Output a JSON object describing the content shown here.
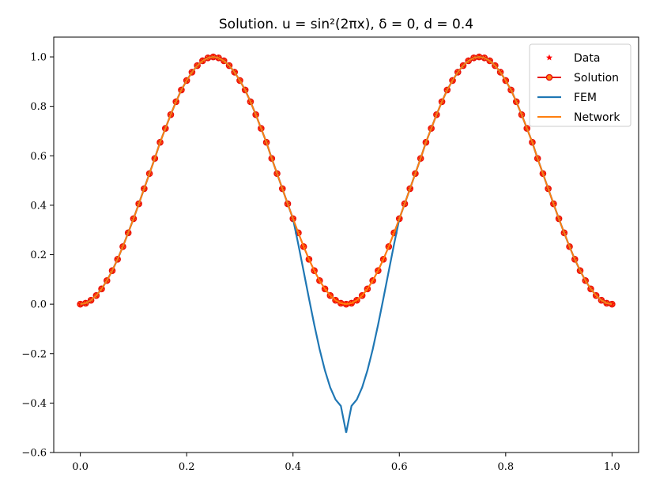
{
  "chart_data": {
    "type": "line",
    "title": "Solution. u = sin²(2πx), δ = 0, d = 0.4",
    "xlabel": "",
    "ylabel": "",
    "xlim": [
      -0.05,
      1.05
    ],
    "ylim": [
      -0.6,
      1.08
    ],
    "x_ticks": [
      0.0,
      0.2,
      0.4,
      0.6,
      0.8,
      1.0
    ],
    "x_tick_labels": [
      "0.0",
      "0.2",
      "0.4",
      "0.6",
      "0.8",
      "1.0"
    ],
    "y_ticks": [
      -0.6,
      -0.4,
      -0.2,
      0.0,
      0.2,
      0.4,
      0.6,
      0.8,
      1.0
    ],
    "y_tick_labels": [
      "−0.6",
      "−0.4",
      "−0.2",
      "0.0",
      "0.2",
      "0.4",
      "0.6",
      "0.8",
      "1.0"
    ],
    "grid": false,
    "legend_position": "top-right",
    "colors": {
      "data": "#ff0000",
      "solution": "#e8110a",
      "fem": "#1f77b4",
      "network": "#ff7f0e"
    },
    "series": [
      {
        "name": "Data",
        "style": "star-markers",
        "x": [
          0.0,
          0.01,
          0.02,
          0.03,
          0.04,
          0.05,
          0.06,
          0.07,
          0.08,
          0.09,
          0.1,
          0.11,
          0.12,
          0.13,
          0.14,
          0.15,
          0.16,
          0.17,
          0.18,
          0.19,
          0.2,
          0.21,
          0.22,
          0.23,
          0.24,
          0.25,
          0.26,
          0.27,
          0.28,
          0.29,
          0.3,
          0.31,
          0.32,
          0.33,
          0.34,
          0.35,
          0.36,
          0.37,
          0.38,
          0.39,
          0.4,
          0.41,
          0.42,
          0.43,
          0.44,
          0.45,
          0.46,
          0.47,
          0.48,
          0.49,
          0.5,
          0.51,
          0.52,
          0.53,
          0.54,
          0.55,
          0.56,
          0.57,
          0.58,
          0.59,
          0.6,
          0.61,
          0.62,
          0.63,
          0.64,
          0.65,
          0.66,
          0.67,
          0.68,
          0.69,
          0.7,
          0.71,
          0.72,
          0.73,
          0.74,
          0.75,
          0.76,
          0.77,
          0.78,
          0.79,
          0.8,
          0.81,
          0.82,
          0.83,
          0.84,
          0.85,
          0.86,
          0.87,
          0.88,
          0.89,
          0.9,
          0.91,
          0.92,
          0.93,
          0.94,
          0.95,
          0.96,
          0.97,
          0.98,
          0.99,
          1.0
        ],
        "y": [
          0.0,
          0.0039,
          0.0157,
          0.0351,
          0.0618,
          0.0955,
          0.1355,
          0.1816,
          0.2328,
          0.2885,
          0.3455,
          0.4058,
          0.4669,
          0.5282,
          0.5893,
          0.6545,
          0.7108,
          0.7665,
          0.8187,
          0.8663,
          0.9045,
          0.9382,
          0.9649,
          0.9843,
          0.9961,
          1.0,
          0.9961,
          0.9843,
          0.9649,
          0.9382,
          0.9045,
          0.8663,
          0.8187,
          0.7665,
          0.7108,
          0.6545,
          0.5893,
          0.5282,
          0.4669,
          0.4058,
          0.3455,
          0.2885,
          0.2328,
          0.1816,
          0.1355,
          0.0955,
          0.0618,
          0.0351,
          0.0157,
          0.0039,
          0.0,
          0.0039,
          0.0157,
          0.0351,
          0.0618,
          0.0955,
          0.1355,
          0.1816,
          0.2328,
          0.2885,
          0.3455,
          0.4058,
          0.4669,
          0.5282,
          0.5893,
          0.6545,
          0.7108,
          0.7665,
          0.8187,
          0.8663,
          0.9045,
          0.9382,
          0.9649,
          0.9843,
          0.9961,
          1.0,
          0.9961,
          0.9843,
          0.9649,
          0.9382,
          0.9045,
          0.8663,
          0.8187,
          0.7665,
          0.7108,
          0.6545,
          0.5893,
          0.5282,
          0.4669,
          0.4058,
          0.3455,
          0.2885,
          0.2328,
          0.1816,
          0.1355,
          0.0955,
          0.0618,
          0.0351,
          0.0157,
          0.0039,
          0.0
        ]
      },
      {
        "name": "Solution",
        "style": "line-with-circle-markers",
        "x": [
          0.0,
          0.01,
          0.02,
          0.03,
          0.04,
          0.05,
          0.06,
          0.07,
          0.08,
          0.09,
          0.1,
          0.11,
          0.12,
          0.13,
          0.14,
          0.15,
          0.16,
          0.17,
          0.18,
          0.19,
          0.2,
          0.21,
          0.22,
          0.23,
          0.24,
          0.25,
          0.26,
          0.27,
          0.28,
          0.29,
          0.3,
          0.31,
          0.32,
          0.33,
          0.34,
          0.35,
          0.36,
          0.37,
          0.38,
          0.39,
          0.4,
          0.41,
          0.42,
          0.43,
          0.44,
          0.45,
          0.46,
          0.47,
          0.48,
          0.49,
          0.5,
          0.51,
          0.52,
          0.53,
          0.54,
          0.55,
          0.56,
          0.57,
          0.58,
          0.59,
          0.6,
          0.61,
          0.62,
          0.63,
          0.64,
          0.65,
          0.66,
          0.67,
          0.68,
          0.69,
          0.7,
          0.71,
          0.72,
          0.73,
          0.74,
          0.75,
          0.76,
          0.77,
          0.78,
          0.79,
          0.8,
          0.81,
          0.82,
          0.83,
          0.84,
          0.85,
          0.86,
          0.87,
          0.88,
          0.89,
          0.9,
          0.91,
          0.92,
          0.93,
          0.94,
          0.95,
          0.96,
          0.97,
          0.98,
          0.99,
          1.0
        ],
        "y": [
          0.0,
          0.0039,
          0.0157,
          0.0351,
          0.0618,
          0.0955,
          0.1355,
          0.1816,
          0.2328,
          0.2885,
          0.3455,
          0.4058,
          0.4669,
          0.5282,
          0.5893,
          0.6545,
          0.7108,
          0.7665,
          0.8187,
          0.8663,
          0.9045,
          0.9382,
          0.9649,
          0.9843,
          0.9961,
          1.0,
          0.9961,
          0.9843,
          0.9649,
          0.9382,
          0.9045,
          0.8663,
          0.8187,
          0.7665,
          0.7108,
          0.6545,
          0.5893,
          0.5282,
          0.4669,
          0.4058,
          0.3455,
          0.2885,
          0.2328,
          0.1816,
          0.1355,
          0.0955,
          0.0618,
          0.0351,
          0.0157,
          0.0039,
          0.0,
          0.0039,
          0.0157,
          0.0351,
          0.0618,
          0.0955,
          0.1355,
          0.1816,
          0.2328,
          0.2885,
          0.3455,
          0.4058,
          0.4669,
          0.5282,
          0.5893,
          0.6545,
          0.7108,
          0.7665,
          0.8187,
          0.8663,
          0.9045,
          0.9382,
          0.9649,
          0.9843,
          0.9961,
          1.0,
          0.9961,
          0.9843,
          0.9649,
          0.9382,
          0.9045,
          0.8663,
          0.8187,
          0.7665,
          0.7108,
          0.6545,
          0.5893,
          0.5282,
          0.4669,
          0.4058,
          0.3455,
          0.2885,
          0.2328,
          0.1816,
          0.1355,
          0.0955,
          0.0618,
          0.0351,
          0.0157,
          0.0039,
          0.0
        ]
      },
      {
        "name": "FEM",
        "style": "line",
        "x": [
          0.0,
          0.01,
          0.02,
          0.03,
          0.04,
          0.05,
          0.06,
          0.07,
          0.08,
          0.09,
          0.1,
          0.11,
          0.12,
          0.13,
          0.14,
          0.15,
          0.16,
          0.17,
          0.18,
          0.19,
          0.2,
          0.21,
          0.22,
          0.23,
          0.24,
          0.25,
          0.26,
          0.27,
          0.28,
          0.29,
          0.3,
          0.31,
          0.32,
          0.33,
          0.34,
          0.35,
          0.36,
          0.37,
          0.38,
          0.39,
          0.4,
          0.41,
          0.42,
          0.43,
          0.44,
          0.45,
          0.46,
          0.47,
          0.48,
          0.49,
          0.5,
          0.51,
          0.52,
          0.53,
          0.54,
          0.55,
          0.56,
          0.57,
          0.58,
          0.59,
          0.6,
          0.61,
          0.62,
          0.63,
          0.64,
          0.65,
          0.66,
          0.67,
          0.68,
          0.69,
          0.7,
          0.71,
          0.72,
          0.73,
          0.74,
          0.75,
          0.76,
          0.77,
          0.78,
          0.79,
          0.8,
          0.81,
          0.82,
          0.83,
          0.84,
          0.85,
          0.86,
          0.87,
          0.88,
          0.89,
          0.9,
          0.91,
          0.92,
          0.93,
          0.94,
          0.95,
          0.96,
          0.97,
          0.98,
          0.99,
          1.0
        ],
        "y": [
          0.0,
          0.0039,
          0.0157,
          0.0351,
          0.0618,
          0.0955,
          0.1355,
          0.1816,
          0.2328,
          0.2885,
          0.3455,
          0.4058,
          0.4669,
          0.5282,
          0.5893,
          0.6545,
          0.7108,
          0.7665,
          0.8187,
          0.8663,
          0.9045,
          0.9382,
          0.9649,
          0.9843,
          0.9961,
          1.0,
          0.9961,
          0.9843,
          0.9649,
          0.9382,
          0.9045,
          0.8663,
          0.8187,
          0.7665,
          0.7108,
          0.6545,
          0.5893,
          0.5282,
          0.4669,
          0.4058,
          0.3455,
          0.2417,
          0.133,
          0.0232,
          -0.0834,
          -0.1819,
          -0.2678,
          -0.337,
          -0.3858,
          -0.4117,
          -0.52,
          -0.4117,
          -0.3858,
          -0.337,
          -0.2678,
          -0.1819,
          -0.0834,
          0.0232,
          0.133,
          0.2417,
          0.3455,
          0.4058,
          0.4669,
          0.5282,
          0.5893,
          0.6545,
          0.7108,
          0.7665,
          0.8187,
          0.8663,
          0.9045,
          0.9382,
          0.9649,
          0.9843,
          0.9961,
          1.0,
          0.9961,
          0.9843,
          0.9649,
          0.9382,
          0.9045,
          0.8663,
          0.8187,
          0.7665,
          0.7108,
          0.6545,
          0.5893,
          0.5282,
          0.4669,
          0.4058,
          0.3455,
          0.2885,
          0.2328,
          0.1816,
          0.1355,
          0.0955,
          0.0618,
          0.0351,
          0.0157,
          0.0039,
          0.0
        ]
      },
      {
        "name": "Network",
        "style": "line",
        "x": [
          0.0,
          0.01,
          0.02,
          0.03,
          0.04,
          0.05,
          0.06,
          0.07,
          0.08,
          0.09,
          0.1,
          0.11,
          0.12,
          0.13,
          0.14,
          0.15,
          0.16,
          0.17,
          0.18,
          0.19,
          0.2,
          0.21,
          0.22,
          0.23,
          0.24,
          0.25,
          0.26,
          0.27,
          0.28,
          0.29,
          0.3,
          0.31,
          0.32,
          0.33,
          0.34,
          0.35,
          0.36,
          0.37,
          0.38,
          0.39,
          0.4,
          0.41,
          0.42,
          0.43,
          0.44,
          0.45,
          0.46,
          0.47,
          0.48,
          0.49,
          0.5,
          0.51,
          0.52,
          0.53,
          0.54,
          0.55,
          0.56,
          0.57,
          0.58,
          0.59,
          0.6,
          0.61,
          0.62,
          0.63,
          0.64,
          0.65,
          0.66,
          0.67,
          0.68,
          0.69,
          0.7,
          0.71,
          0.72,
          0.73,
          0.74,
          0.75,
          0.76,
          0.77,
          0.78,
          0.79,
          0.8,
          0.81,
          0.82,
          0.83,
          0.84,
          0.85,
          0.86,
          0.87,
          0.88,
          0.89,
          0.9,
          0.91,
          0.92,
          0.93,
          0.94,
          0.95,
          0.96,
          0.97,
          0.98,
          0.99,
          1.0
        ],
        "y": [
          0.0,
          0.0039,
          0.0157,
          0.0351,
          0.0618,
          0.0955,
          0.1355,
          0.1816,
          0.2328,
          0.2885,
          0.3455,
          0.4058,
          0.4669,
          0.5282,
          0.5893,
          0.6545,
          0.7108,
          0.7665,
          0.8187,
          0.8663,
          0.9045,
          0.9382,
          0.9649,
          0.9843,
          0.9961,
          1.0,
          0.9961,
          0.9843,
          0.9649,
          0.9382,
          0.9045,
          0.8663,
          0.8187,
          0.7665,
          0.7108,
          0.6545,
          0.5893,
          0.5282,
          0.4669,
          0.4058,
          0.3455,
          0.2885,
          0.2328,
          0.1816,
          0.1355,
          0.0955,
          0.0618,
          0.0351,
          0.0157,
          0.0039,
          0.0,
          0.0039,
          0.0157,
          0.0351,
          0.0618,
          0.0955,
          0.1355,
          0.1816,
          0.2328,
          0.2885,
          0.3455,
          0.4058,
          0.4669,
          0.5282,
          0.5893,
          0.6545,
          0.7108,
          0.7665,
          0.8187,
          0.8663,
          0.9045,
          0.9382,
          0.9649,
          0.9843,
          0.9961,
          1.0,
          0.9961,
          0.9843,
          0.9649,
          0.9382,
          0.9045,
          0.8663,
          0.8187,
          0.7665,
          0.7108,
          0.6545,
          0.5893,
          0.5282,
          0.4669,
          0.4058,
          0.3455,
          0.2885,
          0.2328,
          0.1816,
          0.1355,
          0.0955,
          0.0618,
          0.0351,
          0.0157,
          0.0039,
          0.0
        ]
      }
    ]
  }
}
